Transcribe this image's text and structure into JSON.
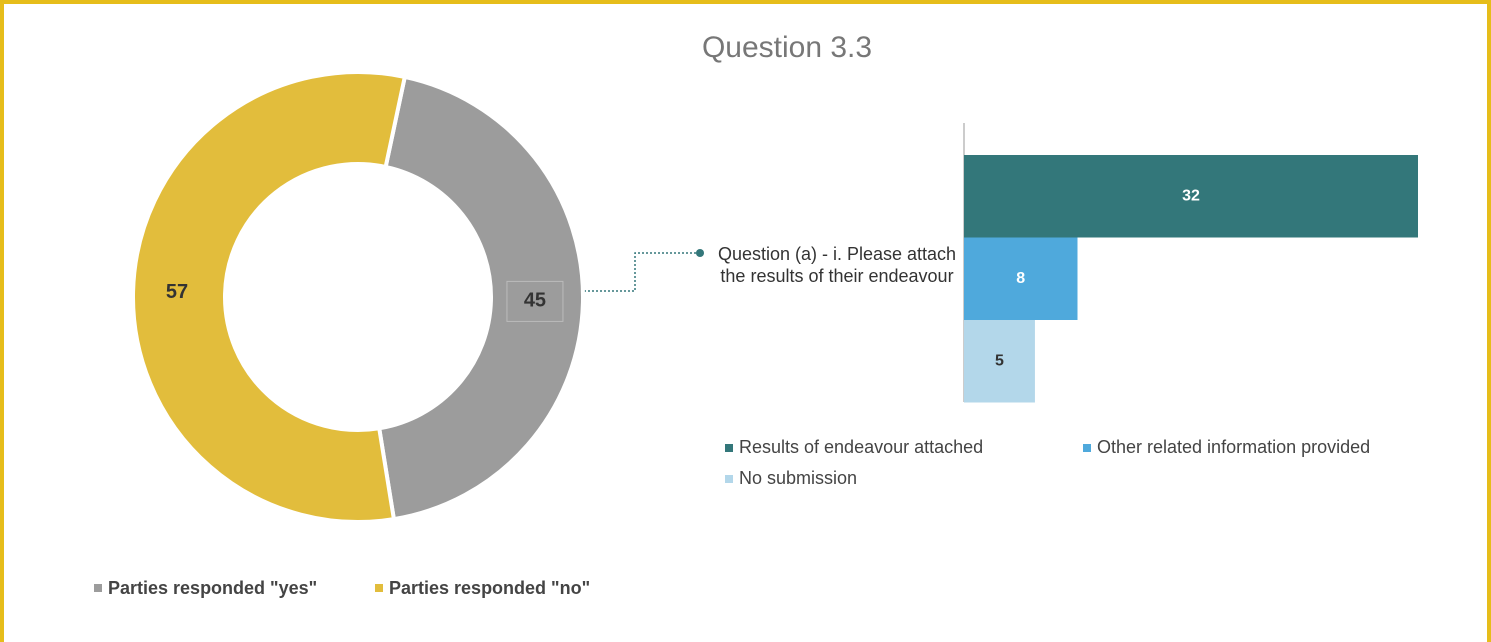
{
  "title": "Question 3.3",
  "chart_data": [
    {
      "type": "donut",
      "categories": [
        "Parties responded \"yes\"",
        "Parties responded \"no\""
      ],
      "values": [
        45,
        57
      ],
      "colors": [
        "#9c9c9c",
        "#e2bd3c"
      ]
    },
    {
      "type": "bar",
      "orientation": "horizontal",
      "categories": [
        "Question (a) - i. Please attach the results of their endeavour"
      ],
      "series": [
        {
          "name": "Results of endeavour attached",
          "color": "#33777a",
          "values": [
            32
          ]
        },
        {
          "name": "Other related information provided",
          "color": "#4fa9dc",
          "values": [
            8
          ]
        },
        {
          "name": "No submission",
          "color": "#b3d7ea",
          "values": [
            5
          ]
        }
      ],
      "xlim": [
        0,
        32
      ]
    }
  ]
}
